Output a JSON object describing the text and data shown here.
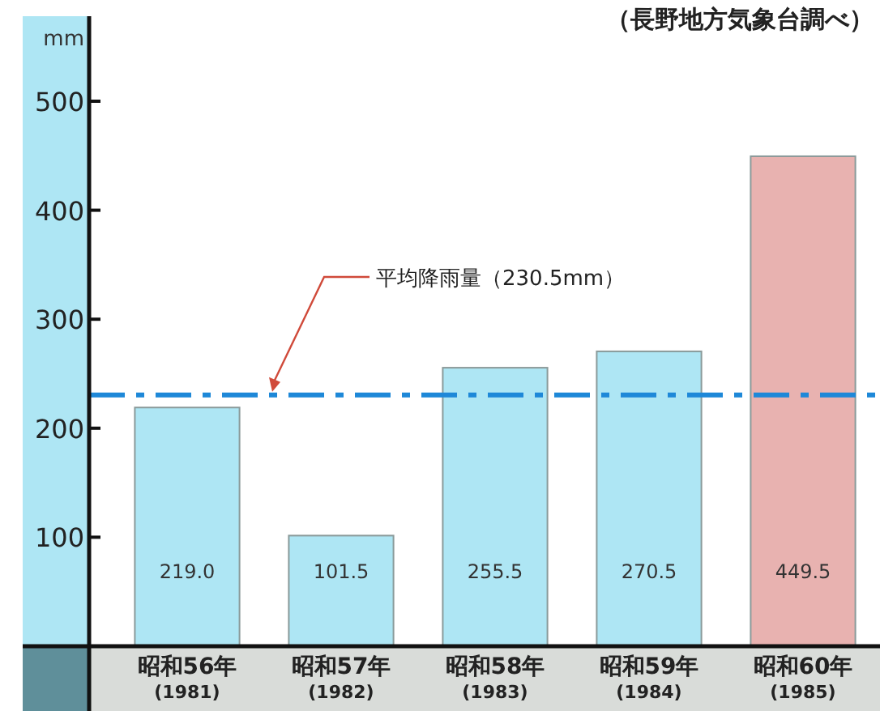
{
  "chart_data": {
    "type": "bar",
    "ylabel": "mm",
    "categories": [
      "昭和56年\n(1981)",
      "昭和57年\n(1982)",
      "昭和58年\n(1983)",
      "昭和59年\n(1984)",
      "昭和60年\n(1985)"
    ],
    "values": [
      219.0,
      101.5,
      255.5,
      270.5,
      449.5
    ],
    "colors": [
      "#aee6f4",
      "#aee6f4",
      "#aee6f4",
      "#aee6f4",
      "#e8b2b0"
    ],
    "value_labels": [
      "219.0",
      "101.5",
      "255.5",
      "270.5",
      "449.5"
    ],
    "ylim": [
      0,
      578
    ],
    "yticks": [
      100,
      200,
      300,
      400,
      500
    ],
    "grid": false,
    "ref_lines": [
      {
        "axis": "y",
        "value": 230.5,
        "label": "平均降雨量（230.5mm）",
        "color": "#1e88d8",
        "line_style": "dashdot"
      }
    ],
    "annotations": [
      "（長野地方気象台調べ）"
    ]
  }
}
